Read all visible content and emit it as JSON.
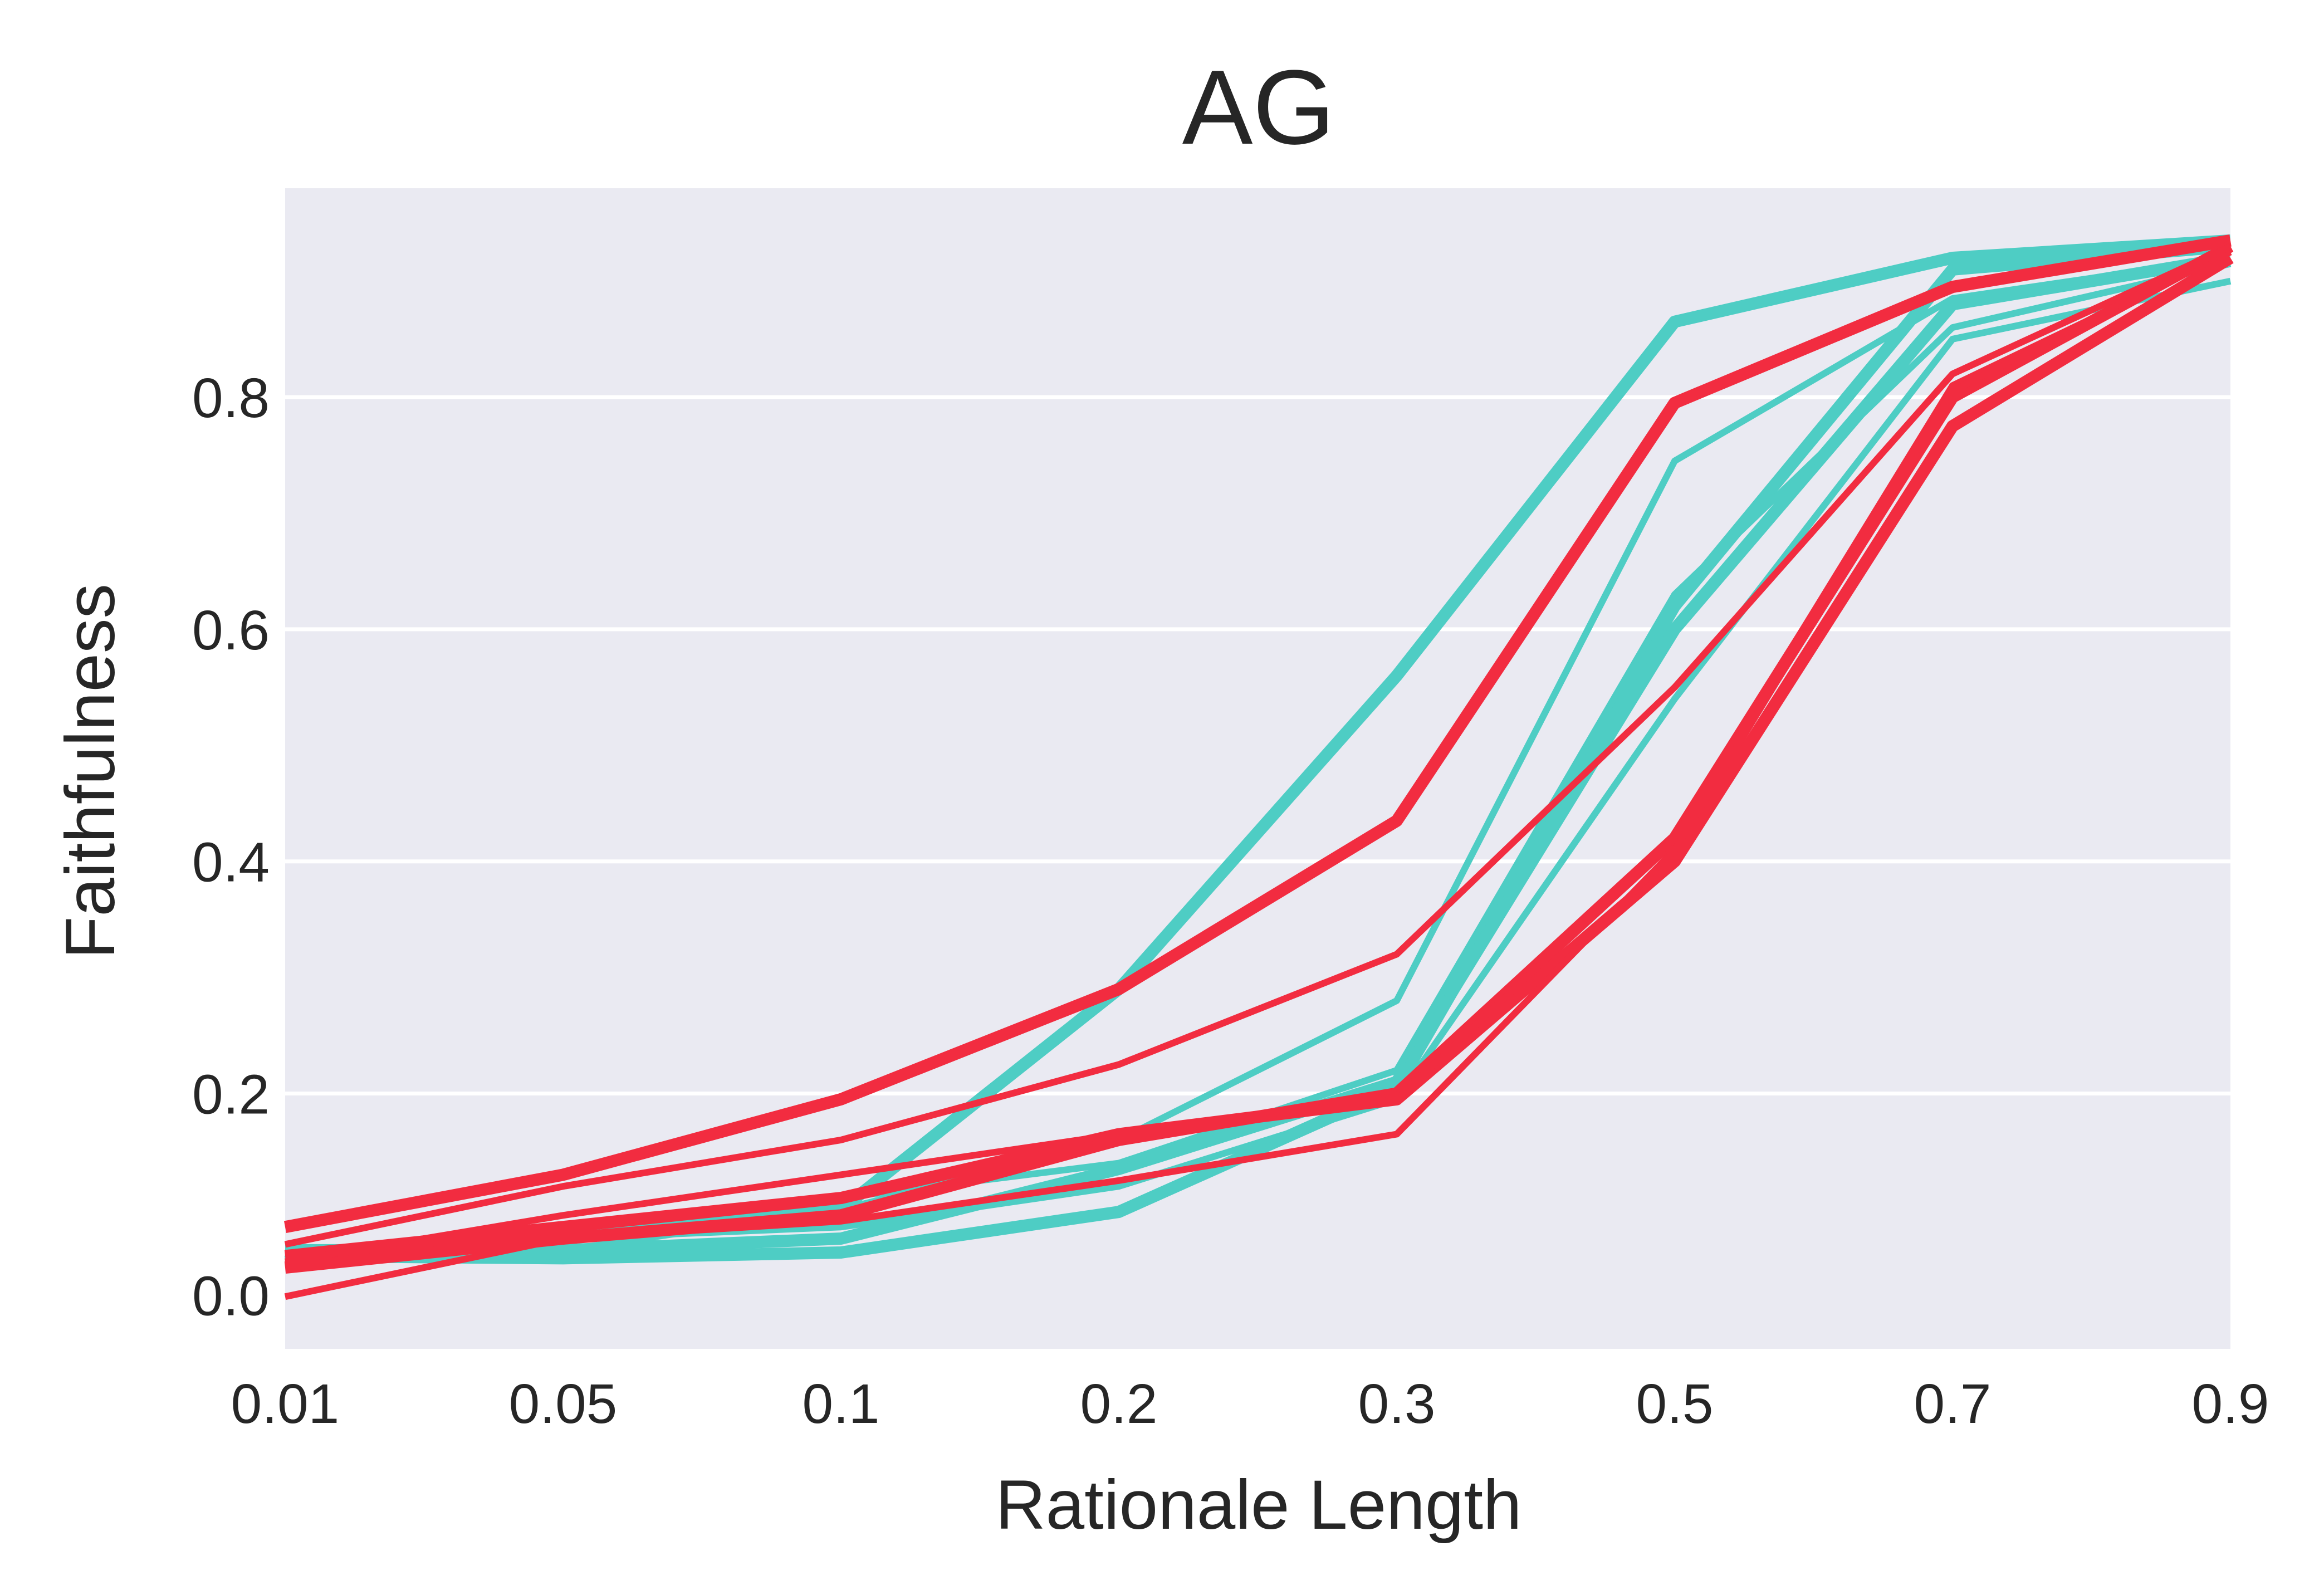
{
  "chart_data": {
    "type": "line",
    "title": "AG",
    "xlabel": "Rationale Length",
    "ylabel": "Faithfulness",
    "x": [
      "0.01",
      "0.05",
      "0.1",
      "0.2",
      "0.3",
      "0.5",
      "0.7",
      "0.9"
    ],
    "yticks": [
      "0.0",
      "0.2",
      "0.4",
      "0.6",
      "0.8"
    ],
    "ylim": [
      -0.02,
      0.98
    ],
    "grid": true,
    "background": "#eaeaf2",
    "colors": {
      "teal": "#4ecdc4",
      "red": "#f22c40"
    },
    "series": [
      {
        "color": "teal",
        "thick": true,
        "values": [
          0.06,
          0.058,
          0.063,
          0.098,
          0.205,
          0.62,
          0.91,
          0.93
        ]
      },
      {
        "color": "teal",
        "thick": true,
        "values": [
          0.065,
          0.065,
          0.075,
          0.135,
          0.21,
          0.6,
          0.88,
          0.92
        ]
      },
      {
        "color": "teal",
        "thick": true,
        "values": [
          0.055,
          0.08,
          0.1,
          0.29,
          0.56,
          0.865,
          0.92,
          0.935
        ]
      },
      {
        "color": "teal",
        "thick": false,
        "values": [
          0.06,
          0.075,
          0.085,
          0.12,
          0.195,
          0.54,
          0.85,
          0.9
        ]
      },
      {
        "color": "teal",
        "thick": false,
        "values": [
          0.06,
          0.065,
          0.1,
          0.16,
          0.28,
          0.745,
          0.885,
          0.92
        ]
      },
      {
        "color": "teal",
        "thick": false,
        "values": [
          0.055,
          0.06,
          0.11,
          0.14,
          0.22,
          0.63,
          0.86,
          0.915
        ]
      },
      {
        "color": "red",
        "thick": true,
        "values": [
          0.085,
          0.13,
          0.195,
          0.29,
          0.435,
          0.795,
          0.895,
          0.935
        ]
      },
      {
        "color": "red",
        "thick": true,
        "values": [
          0.05,
          0.075,
          0.095,
          0.16,
          0.2,
          0.42,
          0.8,
          0.93
        ]
      },
      {
        "color": "red",
        "thick": true,
        "values": [
          0.06,
          0.085,
          0.11,
          0.165,
          0.195,
          0.4,
          0.775,
          0.92
        ]
      },
      {
        "color": "red",
        "thick": false,
        "values": [
          0.07,
          0.12,
          0.16,
          0.225,
          0.32,
          0.55,
          0.82,
          0.93
        ]
      },
      {
        "color": "red",
        "thick": false,
        "values": [
          0.055,
          0.095,
          0.13,
          0.165,
          0.195,
          0.42,
          0.81,
          0.925
        ]
      },
      {
        "color": "red",
        "thick": false,
        "values": [
          0.025,
          0.075,
          0.09,
          0.125,
          0.165,
          0.41,
          0.805,
          0.93
        ]
      }
    ]
  }
}
